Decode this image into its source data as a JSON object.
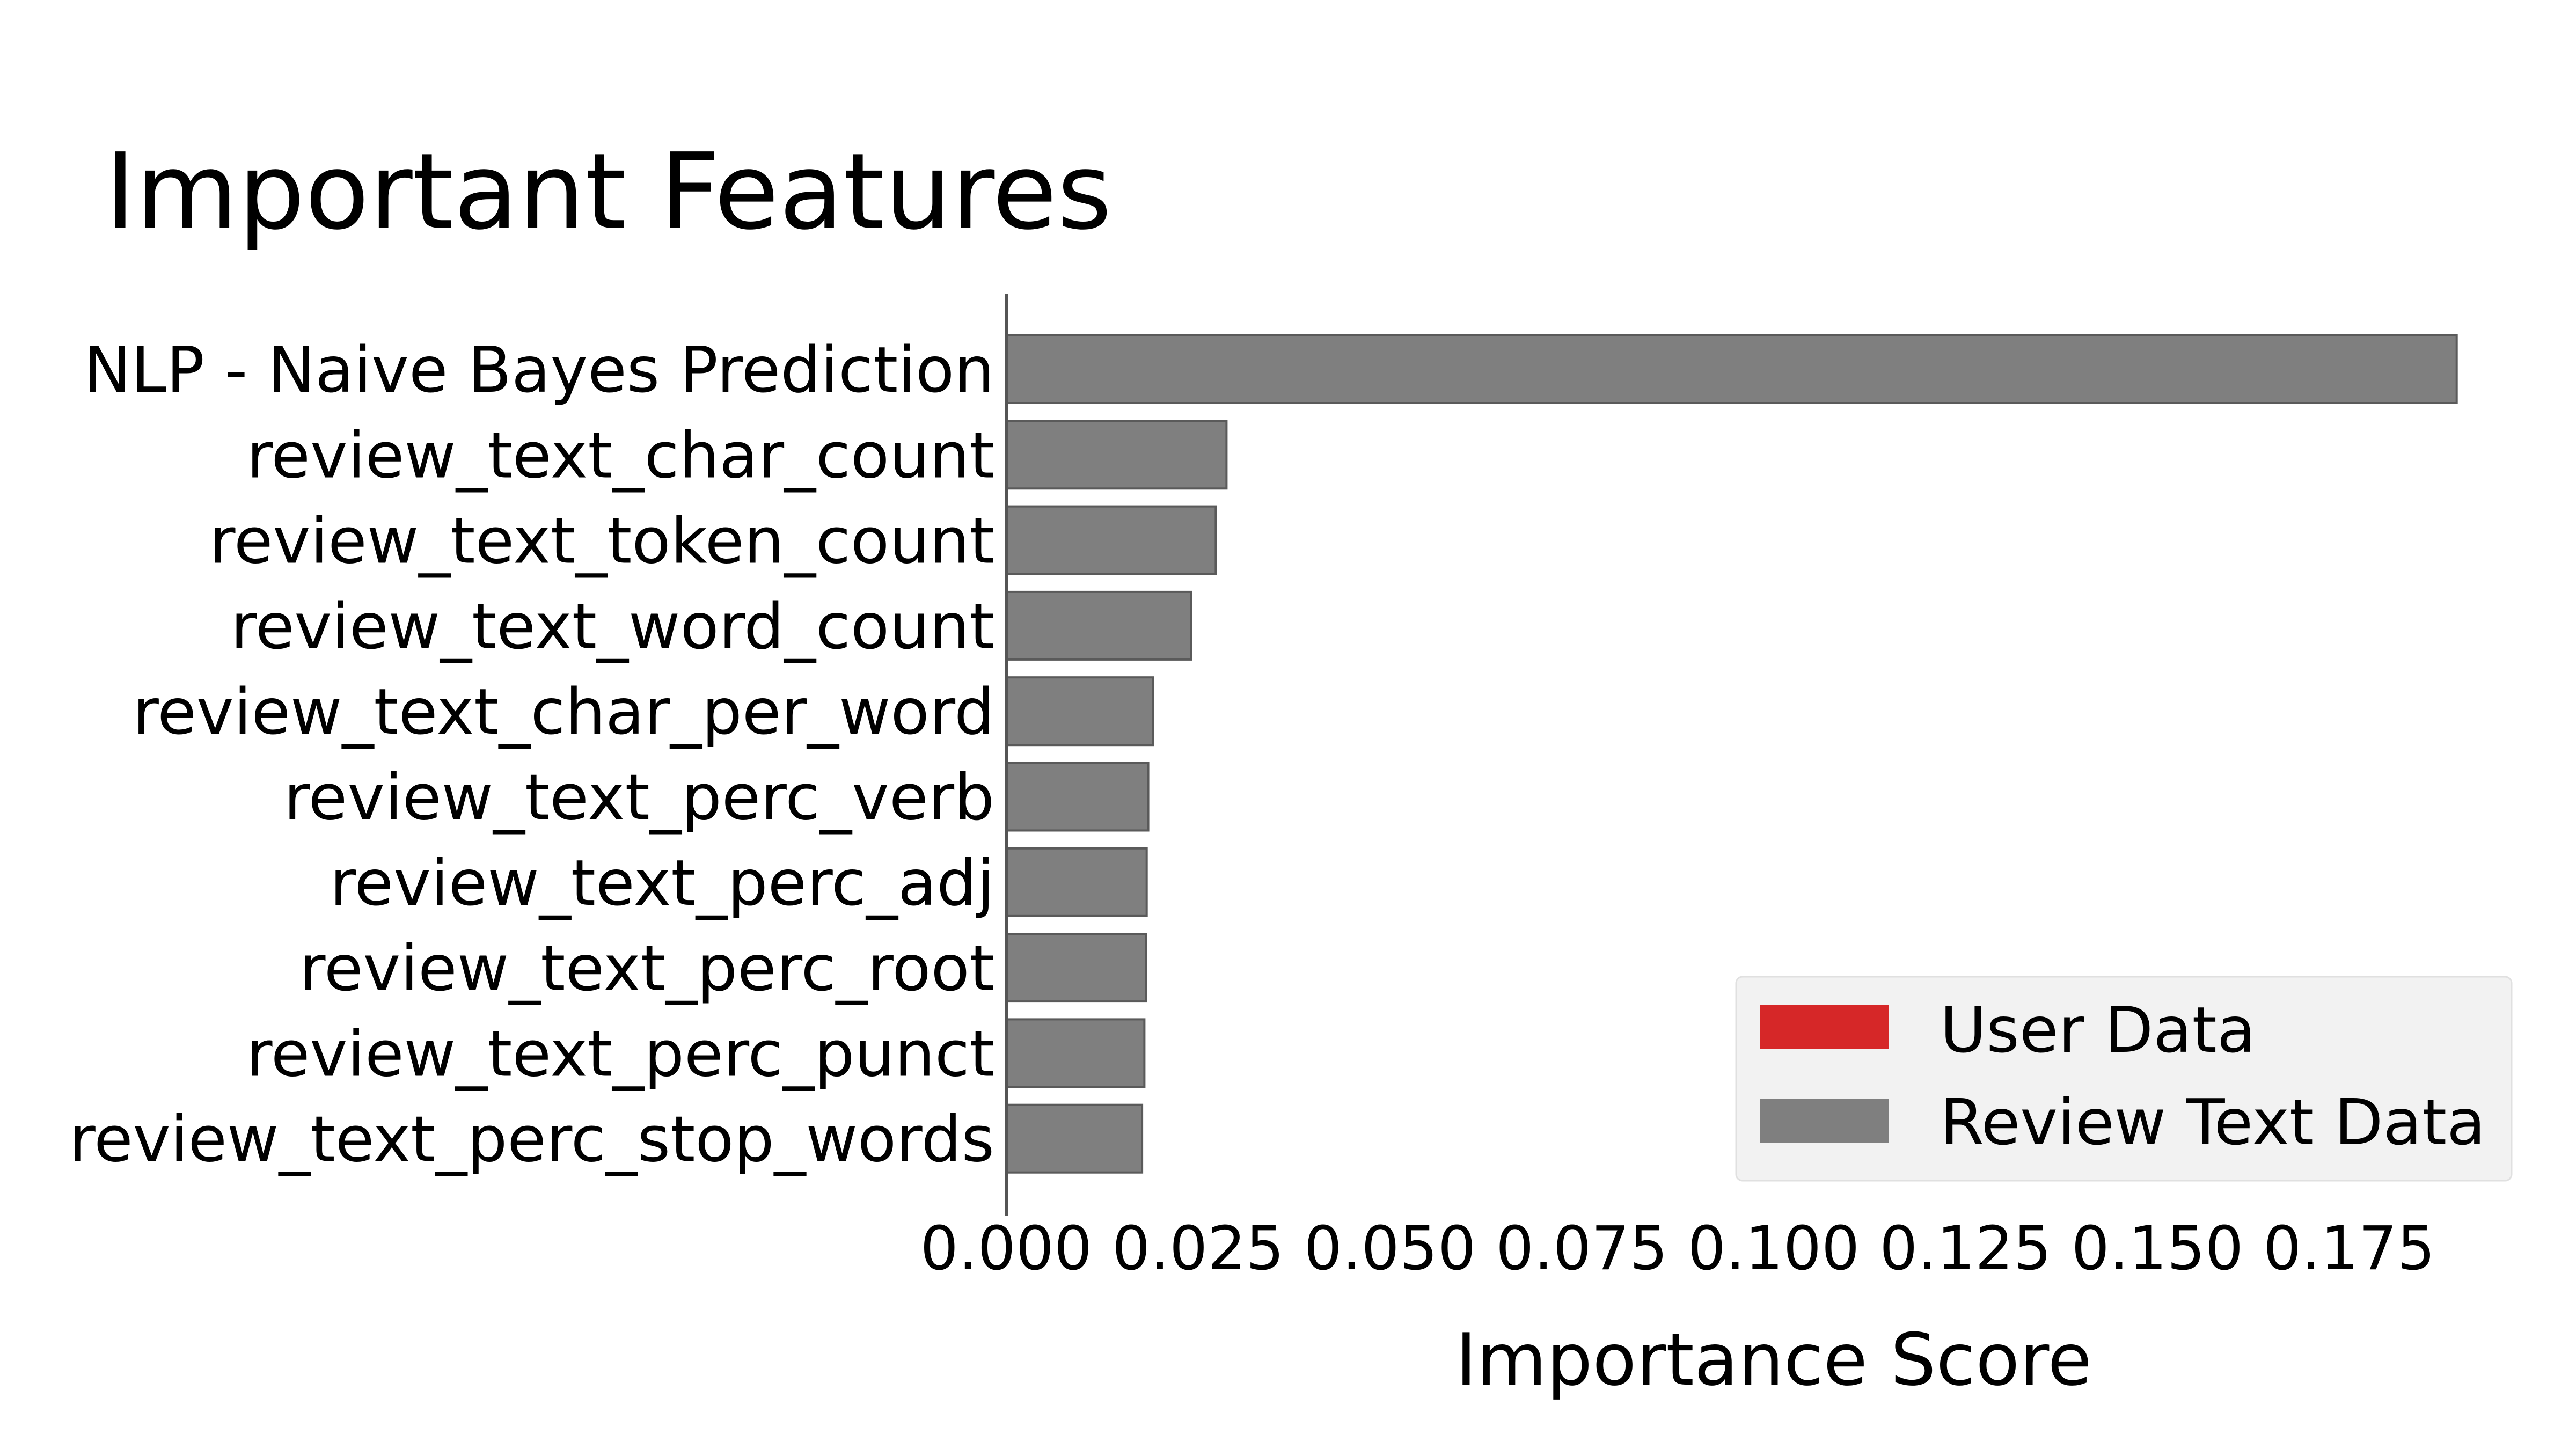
{
  "chart_data": {
    "type": "bar",
    "orientation": "horizontal",
    "title": "Important Features",
    "xlabel": "Importance Score",
    "ylabel": "",
    "xlim": [
      0,
      0.19
    ],
    "xticks": [
      "0.000",
      "0.025",
      "0.050",
      "0.075",
      "0.100",
      "0.125",
      "0.150",
      "0.175"
    ],
    "categories": [
      "NLP - Naive Bayes Prediction",
      "review_text_char_count",
      "review_text_token_count",
      "review_text_word_count",
      "review_text_char_per_word",
      "review_text_perc_verb",
      "review_text_perc_adj",
      "review_text_perc_root",
      "review_text_perc_punct",
      "review_text_perc_stop_words"
    ],
    "values": [
      0.189,
      0.0287,
      0.0273,
      0.0241,
      0.0191,
      0.0185,
      0.0183,
      0.0182,
      0.018,
      0.0177
    ],
    "bar_groups": [
      "Review Text Data",
      "Review Text Data",
      "Review Text Data",
      "Review Text Data",
      "Review Text Data",
      "Review Text Data",
      "Review Text Data",
      "Review Text Data",
      "Review Text Data",
      "Review Text Data"
    ],
    "legend": {
      "placement": "lower-right",
      "entries": [
        {
          "label": "User Data",
          "color": "#d62728"
        },
        {
          "label": "Review Text Data",
          "color": "#7f7f7f"
        }
      ]
    },
    "grid": false,
    "colors": {
      "bar": "#7f7f7f",
      "bar_edge": "#5a5a5a",
      "axis": "#555555",
      "legend_bg": "#f2f2f2"
    }
  }
}
